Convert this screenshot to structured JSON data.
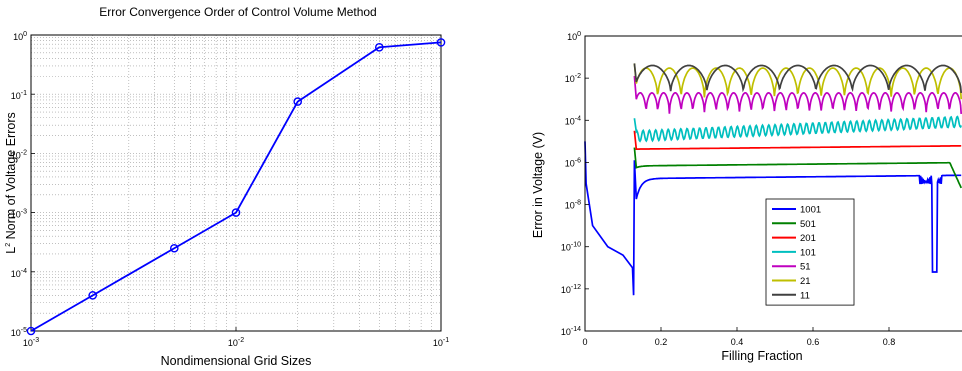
{
  "chart_data": [
    {
      "type": "line",
      "title": "Error Convergence Order of Control Volume Method",
      "xlabel": "Nondimensional Grid Sizes",
      "ylabel_prefix": "L",
      "ylabel_sup": "2",
      "ylabel_rest": " Norm of Voltage Errors",
      "x_scale": "log",
      "y_scale": "log",
      "xlim": [
        0.001,
        0.1
      ],
      "ylim": [
        1e-05,
        1
      ],
      "grid": true,
      "x_ticks": [
        {
          "base": "10",
          "exp": "-3",
          "value": 0.001
        },
        {
          "base": "10",
          "exp": "-2",
          "value": 0.01
        },
        {
          "base": "10",
          "exp": "-1",
          "value": 0.1
        }
      ],
      "y_ticks": [
        {
          "base": "10",
          "exp": "-5",
          "value": 1e-05
        },
        {
          "base": "10",
          "exp": "-4",
          "value": 0.0001
        },
        {
          "base": "10",
          "exp": "-3",
          "value": 0.001
        },
        {
          "base": "10",
          "exp": "-2",
          "value": 0.01
        },
        {
          "base": "10",
          "exp": "-1",
          "value": 0.1
        },
        {
          "base": "10",
          "exp": "0",
          "value": 1
        }
      ],
      "series": [
        {
          "color": "#0000ff",
          "marker": "circle",
          "x": [
            0.001,
            0.002,
            0.005,
            0.01,
            0.02,
            0.05,
            0.1
          ],
          "y": [
            1e-05,
            4e-05,
            0.00025,
            0.001,
            0.075,
            0.62,
            0.75
          ]
        }
      ]
    },
    {
      "type": "line",
      "title": "",
      "xlabel": "Filling Fraction",
      "ylabel": "Error in Voltage (V)",
      "x_scale": "linear",
      "y_scale": "log",
      "xlim": [
        0,
        1
      ],
      "ylim": [
        1e-14,
        1
      ],
      "x_ticks": [
        {
          "label": "0",
          "value": 0
        },
        {
          "label": "0.2",
          "value": 0.2
        },
        {
          "label": "0.4",
          "value": 0.4
        },
        {
          "label": "0.6",
          "value": 0.6
        },
        {
          "label": "0.8",
          "value": 0.8
        }
      ],
      "y_ticks": [
        {
          "base": "10",
          "exp": "0",
          "value": 1
        },
        {
          "base": "10",
          "exp": "-2",
          "value": 0.01
        },
        {
          "base": "10",
          "exp": "-4",
          "value": 0.0001
        },
        {
          "base": "10",
          "exp": "-6",
          "value": 1e-06
        },
        {
          "base": "10",
          "exp": "-8",
          "value": 1e-08
        },
        {
          "base": "10",
          "exp": "-10",
          "value": 1e-10
        },
        {
          "base": "10",
          "exp": "-12",
          "value": 1e-12
        },
        {
          "base": "10",
          "exp": "-14",
          "value": 1e-14
        }
      ],
      "legend_position": "bottom-right-inner",
      "series": [
        {
          "name": "1001",
          "color": "#0000ff",
          "level": 2e-07,
          "dip": 7e-09,
          "style": "flat"
        },
        {
          "name": "501",
          "color": "#008000",
          "level": 8e-07,
          "dip": 6e-07,
          "style": "flat"
        },
        {
          "name": "201",
          "color": "#ff0000",
          "level": 5e-06,
          "dip": 5e-06,
          "style": "flat"
        },
        {
          "name": "101",
          "color": "#00bfbf",
          "level": 2e-05,
          "dip": 2e-05,
          "style": "ripple"
        },
        {
          "name": "51",
          "color": "#bf00bf",
          "level": 0.002,
          "dip": 0.0002,
          "style": "lobes",
          "lobes": 28
        },
        {
          "name": "21",
          "color": "#bfbf00",
          "level": 0.03,
          "dip": 0.001,
          "style": "lobes",
          "lobes": 14
        },
        {
          "name": "11",
          "color": "#404040",
          "level": 0.04,
          "dip": 0.002,
          "style": "lobes",
          "lobes": 9
        }
      ],
      "shared_initial_curve": {
        "x": [
          0,
          0.003,
          0.02,
          0.06,
          0.1,
          0.125,
          0.128
        ],
        "y": [
          1e-05,
          1e-07,
          1e-09,
          1e-10,
          4e-11,
          1e-11,
          5e-13
        ]
      }
    }
  ]
}
